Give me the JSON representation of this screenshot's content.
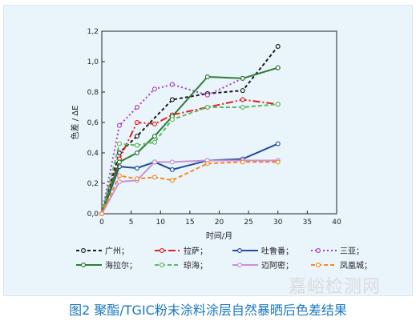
{
  "chart_data": {
    "type": "line",
    "title": "",
    "xlabel": "时间/月",
    "ylabel": "色差 / ΔE",
    "xlim": [
      0,
      40
    ],
    "ylim": [
      0,
      1.2
    ],
    "xticks": [
      "0",
      "5",
      "10",
      "15",
      "20",
      "25",
      "30",
      "35",
      "40"
    ],
    "yticks": [
      "0,0",
      "0,2",
      "0,4",
      "0,6",
      "0,8",
      "1,0",
      "1,2"
    ],
    "xtick_values": [
      0,
      5,
      10,
      15,
      20,
      25,
      30,
      35,
      40
    ],
    "ytick_values": [
      0,
      0.2,
      0.4,
      0.6,
      0.8,
      1.0,
      1.2
    ],
    "grid": false,
    "legend_position": "bottom",
    "series": [
      {
        "name": "广州",
        "color": "#1a1a1a",
        "dash": "4,3",
        "x": [
          0,
          3,
          6,
          12,
          18,
          24,
          30
        ],
        "y": [
          0.0,
          0.4,
          0.51,
          0.75,
          0.79,
          0.81,
          1.1
        ]
      },
      {
        "name": "拉萨",
        "color": "#e02020",
        "dash": "9,3,2,3",
        "x": [
          0,
          3,
          6,
          9,
          12,
          18,
          24,
          30
        ],
        "y": [
          0.0,
          0.36,
          0.6,
          0.59,
          0.65,
          0.7,
          0.75,
          0.72
        ]
      },
      {
        "name": "吐鲁番",
        "color": "#1f4e9c",
        "dash": "",
        "x": [
          0,
          3,
          6,
          9,
          12,
          18,
          24,
          30
        ],
        "y": [
          0.0,
          0.31,
          0.3,
          0.34,
          0.29,
          0.35,
          0.36,
          0.46
        ]
      },
      {
        "name": "三亚",
        "color": "#a040c0",
        "dash": "2,3",
        "x": [
          0,
          3,
          6,
          9,
          12,
          18,
          24,
          30
        ],
        "y": [
          0.0,
          0.58,
          0.7,
          0.82,
          0.85,
          0.78,
          0.89,
          0.96
        ]
      },
      {
        "name": "海拉尔",
        "color": "#2e7d32",
        "dash": "",
        "x": [
          0,
          3,
          6,
          9,
          12,
          18,
          24,
          30
        ],
        "y": [
          0.0,
          0.34,
          0.4,
          0.51,
          0.64,
          0.9,
          0.89,
          0.96
        ]
      },
      {
        "name": "琼海",
        "color": "#5cb85c",
        "dash": "5,3",
        "x": [
          0,
          3,
          6,
          9,
          12,
          18,
          24,
          30
        ],
        "y": [
          0.0,
          0.46,
          0.45,
          0.47,
          0.62,
          0.7,
          0.7,
          0.72
        ]
      },
      {
        "name": "迈阿密",
        "color": "#c890d8",
        "dash": "",
        "x": [
          0,
          3,
          6,
          9,
          12,
          18,
          24,
          30
        ],
        "y": [
          0.0,
          0.21,
          0.22,
          0.34,
          0.34,
          0.35,
          0.35,
          0.35
        ]
      },
      {
        "name": "凤凰城",
        "color": "#f08a24",
        "dash": "5,3",
        "x": [
          0,
          3,
          6,
          9,
          12,
          18,
          24,
          30
        ],
        "y": [
          0.0,
          0.25,
          0.23,
          0.24,
          0.22,
          0.33,
          0.34,
          0.34
        ]
      }
    ]
  },
  "caption": "图2 聚酯/TGIC粉末涂料涂层自然暴晒后色差结果",
  "watermark": "嘉峪检测网"
}
